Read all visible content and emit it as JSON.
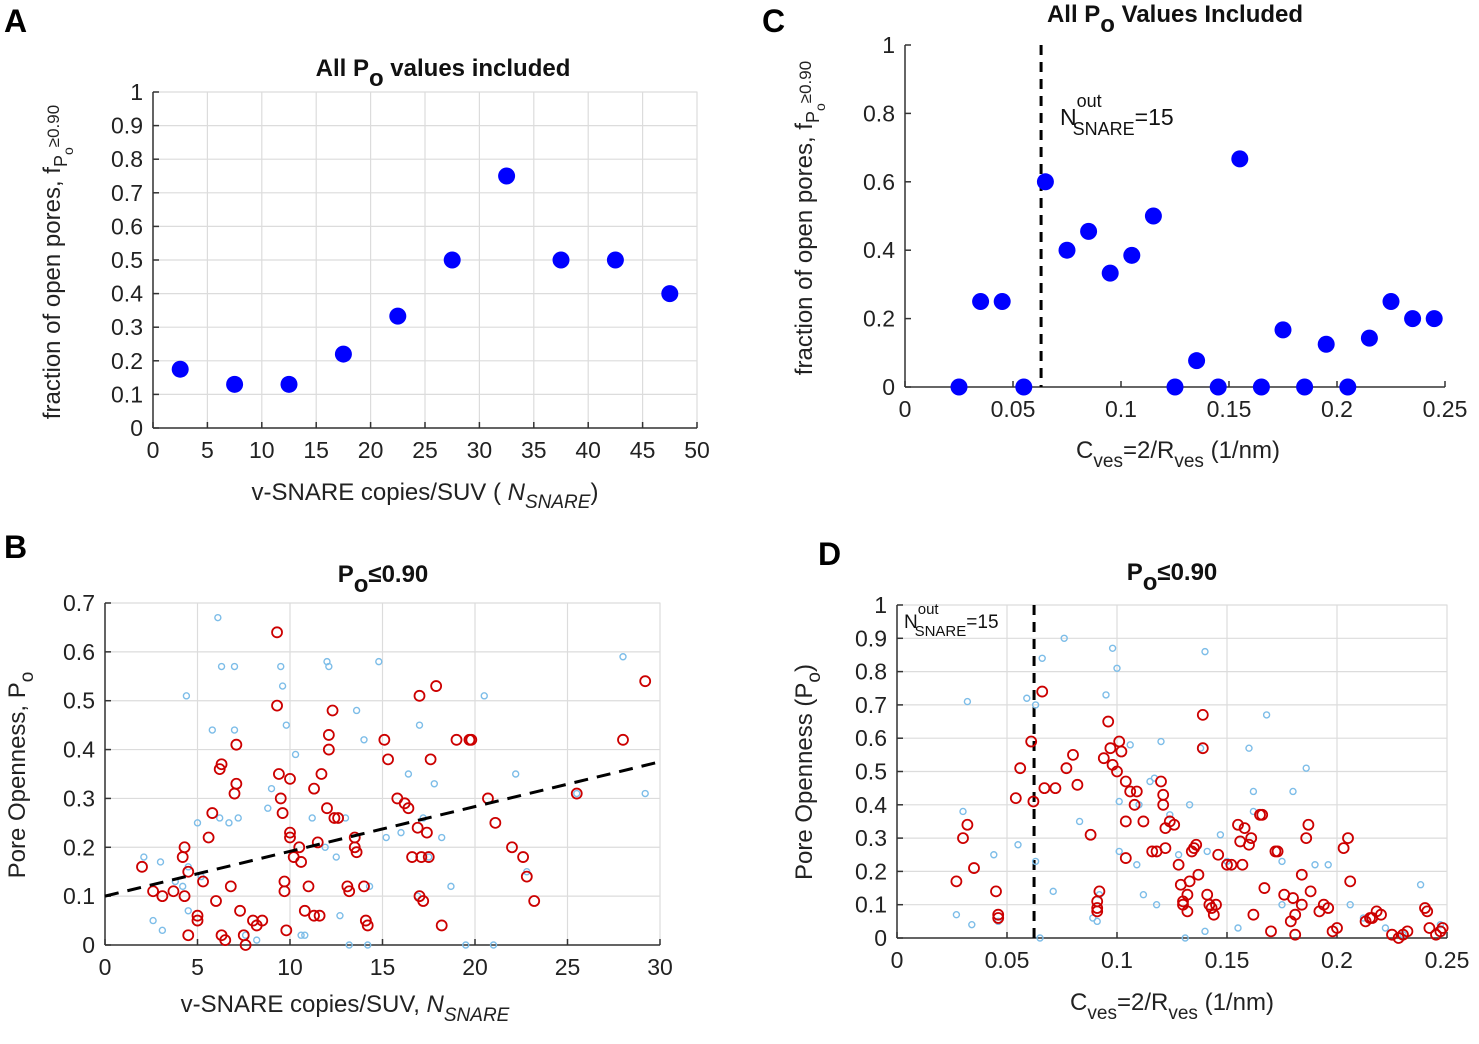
{
  "chart_data": [
    {
      "panel": "A",
      "type": "scatter",
      "title": {
        "pre": "All P",
        "sub": "o",
        "post": " values included"
      },
      "xlabel": {
        "pre": "v-SNARE copies/SUV ( ",
        "ital": "N",
        "sub": "SNARE",
        "post": ")"
      },
      "ylabel": {
        "pre": "fraction of open pores, f",
        "sub": "P",
        "subsub": "o",
        "post": "≥0.90"
      },
      "xlim": [
        0,
        50
      ],
      "ylim": [
        0,
        1
      ],
      "xticks": [
        0,
        5,
        10,
        15,
        20,
        25,
        30,
        35,
        40,
        45,
        50
      ],
      "xticklabels": [
        "0",
        "5",
        "10",
        "15",
        "20",
        "25",
        "30",
        "35",
        "40",
        "45",
        "50"
      ],
      "yticks": [
        0,
        0.1,
        0.2,
        0.3,
        0.4,
        0.5,
        0.6,
        0.7,
        0.8,
        0.9,
        1
      ],
      "yticklabels": [
        "0",
        "0.1",
        "0.2",
        "0.3",
        "0.4",
        "0.5",
        "0.6",
        "0.7",
        "0.8",
        "0.9",
        "1"
      ],
      "grid": true,
      "series": [
        {
          "color": "#0000ff",
          "marker": "filled-circle",
          "x": [
            2.5,
            7.5,
            12.5,
            17.5,
            22.5,
            27.5,
            32.5,
            37.5,
            42.5,
            47.5
          ],
          "y": [
            0.175,
            0.13,
            0.13,
            0.22,
            0.333,
            0.5,
            0.75,
            0.5,
            0.5,
            0.4
          ]
        }
      ]
    },
    {
      "panel": "B",
      "type": "scatter",
      "title": {
        "pre": "P",
        "sub": "o",
        "post": "≤0.90"
      },
      "xlabel": {
        "pre": "v-SNARE copies/SUV,  ",
        "ital": "N",
        "sub": "SNARE",
        "post": ""
      },
      "ylabel": {
        "pre": "Pore Openness, P",
        "sub": "o",
        "post": ""
      },
      "xlim": [
        0,
        30
      ],
      "ylim": [
        0,
        0.7
      ],
      "xticks": [
        0,
        5,
        10,
        15,
        20,
        25,
        30
      ],
      "xticklabels": [
        "0",
        "5",
        "10",
        "15",
        "20",
        "25",
        "30"
      ],
      "yticks": [
        0,
        0.1,
        0.2,
        0.3,
        0.4,
        0.5,
        0.6,
        0.7
      ],
      "yticklabels": [
        "0",
        "0.1",
        "0.2",
        "0.3",
        "0.4",
        "0.5",
        "0.6",
        "0.7"
      ],
      "grid": true,
      "trendline": {
        "x": [
          0,
          30
        ],
        "y": [
          0.1,
          0.375
        ],
        "style": "dashed",
        "color": "#000000"
      },
      "series": [
        {
          "color": "#7dbde8",
          "marker": "small-open-circle",
          "x": [
            2.1,
            2.6,
            3.1,
            3.8,
            4.4,
            4.5,
            4.2,
            4.5,
            5.2,
            5.8,
            6.1,
            6.3,
            6.2,
            6.7,
            7.0,
            7.0,
            7.2,
            7.6,
            8.2,
            8.8,
            9.5,
            9.6,
            9.8,
            10.3,
            10.6,
            10.8,
            12.0,
            12.1,
            12.5,
            13.2,
            13.0,
            13.6,
            14.2,
            14.8,
            15.2,
            16.0,
            16.4,
            17.0,
            17.8,
            17.2,
            17.5,
            18.2,
            18.7,
            19.5,
            20.5,
            21.0,
            22.2,
            22.8,
            25.5,
            28.0,
            29.2,
            11.2,
            12.7,
            14.3,
            16.9,
            5.0,
            9.0,
            11.9,
            14.0,
            3.0
          ],
          "y": [
            0.18,
            0.05,
            0.03,
            0.13,
            0.51,
            0.16,
            0.12,
            0.07,
            0.14,
            0.44,
            0.67,
            0.57,
            0.26,
            0.25,
            0.44,
            0.57,
            0.26,
            0.02,
            0.01,
            0.28,
            0.57,
            0.53,
            0.45,
            0.39,
            0.02,
            0.02,
            0.58,
            0.57,
            0.18,
            0.0,
            0.26,
            0.48,
            0.0,
            0.58,
            0.22,
            0.23,
            0.35,
            0.45,
            0.33,
            0.26,
            0.18,
            0.22,
            0.12,
            0.0,
            0.51,
            0.0,
            0.35,
            0.15,
            0.31,
            0.59,
            0.31,
            0.26,
            0.06,
            0.12,
            0.1,
            0.25,
            0.32,
            0.2,
            0.42,
            0.17
          ]
        },
        {
          "color": "#cc0000",
          "marker": "open-circle",
          "x": [
            2.0,
            2.6,
            3.1,
            3.7,
            4.2,
            4.3,
            4.5,
            4.3,
            4.5,
            5.0,
            5.0,
            5.3,
            5.6,
            5.8,
            6.0,
            6.2,
            6.3,
            6.3,
            6.5,
            6.8,
            7.0,
            7.1,
            7.1,
            7.3,
            7.5,
            7.6,
            8.0,
            8.2,
            8.5,
            9.3,
            9.3,
            9.4,
            9.5,
            9.6,
            9.7,
            9.7,
            9.8,
            10.0,
            10.0,
            10.0,
            10.2,
            10.5,
            10.6,
            10.8,
            11.0,
            11.3,
            11.6,
            11.5,
            11.3,
            11.7,
            12.0,
            12.1,
            12.1,
            12.3,
            12.4,
            12.6,
            13.1,
            13.2,
            13.5,
            13.5,
            13.6,
            14.1,
            14.2,
            14.0,
            15.1,
            15.3,
            15.8,
            16.2,
            16.4,
            16.6,
            16.9,
            17.0,
            17.2,
            17.1,
            17.4,
            17.5,
            17.6,
            17.0,
            17.9,
            18.2,
            19.0,
            19.7,
            19.8,
            20.7,
            21.1,
            22.0,
            22.6,
            22.8,
            23.2,
            25.5,
            28.0,
            29.2
          ],
          "y": [
            0.16,
            0.11,
            0.1,
            0.11,
            0.18,
            0.2,
            0.15,
            0.1,
            0.02,
            0.06,
            0.05,
            0.13,
            0.22,
            0.27,
            0.09,
            0.36,
            0.37,
            0.02,
            0.01,
            0.12,
            0.31,
            0.33,
            0.41,
            0.07,
            0.02,
            0.0,
            0.05,
            0.04,
            0.05,
            0.64,
            0.49,
            0.35,
            0.3,
            0.27,
            0.13,
            0.11,
            0.03,
            0.34,
            0.23,
            0.22,
            0.18,
            0.2,
            0.17,
            0.07,
            0.12,
            0.06,
            0.06,
            0.21,
            0.32,
            0.35,
            0.28,
            0.4,
            0.43,
            0.48,
            0.26,
            0.26,
            0.12,
            0.11,
            0.22,
            0.2,
            0.19,
            0.05,
            0.04,
            0.12,
            0.42,
            0.38,
            0.3,
            0.29,
            0.28,
            0.18,
            0.24,
            0.1,
            0.09,
            0.18,
            0.23,
            0.18,
            0.38,
            0.51,
            0.53,
            0.04,
            0.42,
            0.42,
            0.42,
            0.3,
            0.25,
            0.2,
            0.18,
            0.14,
            0.09,
            0.31,
            0.42,
            0.54
          ]
        }
      ]
    },
    {
      "panel": "C",
      "type": "scatter",
      "title": {
        "pre": "All P",
        "sub": "o",
        "post": " Values Included"
      },
      "xlabel": {
        "pre": "C",
        "sub": "ves",
        "mid": "=2/R",
        "sub2": "ves",
        "post": " (1/nm)"
      },
      "ylabel": {
        "pre": "fraction of open pores, f",
        "sub": "P",
        "subsub": "o",
        "post": "≥0.90"
      },
      "xlim": [
        0,
        0.25
      ],
      "ylim": [
        0,
        1
      ],
      "xticks": [
        0,
        0.05,
        0.1,
        0.15,
        0.2,
        0.25
      ],
      "xticklabels": [
        "0",
        "0.05",
        "0.1",
        "0.15",
        "0.2",
        "0.25"
      ],
      "yticks": [
        0,
        0.2,
        0.4,
        0.6,
        0.8,
        1
      ],
      "yticklabels": [
        "0",
        "0.2",
        "0.4",
        "0.6",
        "0.8",
        "1"
      ],
      "grid": false,
      "vline": {
        "x": 0.063,
        "style": "dashed",
        "color": "#000000"
      },
      "annotation": {
        "pre": "N",
        "sup": "out",
        "sub": "SNARE",
        "post": "=15"
      },
      "series": [
        {
          "color": "#0000ff",
          "marker": "filled-circle",
          "x": [
            0.025,
            0.035,
            0.045,
            0.055,
            0.065,
            0.075,
            0.085,
            0.095,
            0.105,
            0.115,
            0.125,
            0.135,
            0.145,
            0.155,
            0.165,
            0.175,
            0.185,
            0.195,
            0.205,
            0.215,
            0.225,
            0.235,
            0.245
          ],
          "y": [
            0,
            0.25,
            0.25,
            0,
            0.6,
            0.4,
            0.455,
            0.333,
            0.385,
            0.5,
            0,
            0.077,
            0,
            0.667,
            0,
            0.167,
            0,
            0.125,
            0,
            0.143,
            0.25,
            0.2,
            0.2
          ]
        }
      ]
    },
    {
      "panel": "D",
      "type": "scatter",
      "title": {
        "pre": "P",
        "sub": "o",
        "post": "≤0.90"
      },
      "xlabel": {
        "pre": "C",
        "sub": "ves",
        "mid": "=2/R",
        "sub2": "ves",
        "post": " (1/nm)"
      },
      "ylabel": {
        "pre": "Pore Openness (P",
        "sub": "o",
        "post": ")"
      },
      "xlim": [
        0,
        0.25
      ],
      "ylim": [
        0,
        1
      ],
      "xticks": [
        0,
        0.05,
        0.1,
        0.15,
        0.2,
        0.25
      ],
      "xticklabels": [
        "0",
        "0.05",
        "0.1",
        "0.15",
        "0.2",
        "0.25"
      ],
      "yticks": [
        0,
        0.1,
        0.2,
        0.3,
        0.4,
        0.5,
        0.6,
        0.7,
        0.8,
        0.9,
        1
      ],
      "yticklabels": [
        "0",
        "0.1",
        "0.2",
        "0.3",
        "0.4",
        "0.5",
        "0.6",
        "0.7",
        "0.8",
        "0.9",
        "1"
      ],
      "grid": true,
      "vline": {
        "x": 0.0623,
        "style": "dashed",
        "color": "#000000"
      },
      "annotation": {
        "pre": "N",
        "sup": "out",
        "sub": "SNARE",
        "post": "=15"
      },
      "series": [
        {
          "color": "#7dbde8",
          "marker": "small-open-circle",
          "x": [
            0.027,
            0.03,
            0.032,
            0.034,
            0.044,
            0.046,
            0.055,
            0.059,
            0.063,
            0.063,
            0.065,
            0.066,
            0.071,
            0.076,
            0.083,
            0.089,
            0.091,
            0.092,
            0.095,
            0.098,
            0.1,
            0.101,
            0.101,
            0.106,
            0.109,
            0.11,
            0.112,
            0.115,
            0.117,
            0.12,
            0.124,
            0.128,
            0.131,
            0.133,
            0.138,
            0.14,
            0.141,
            0.147,
            0.15,
            0.155,
            0.16,
            0.162,
            0.162,
            0.168,
            0.175,
            0.175,
            0.18,
            0.186,
            0.19,
            0.196,
            0.206,
            0.212,
            0.222,
            0.238,
            0.247,
            0.23,
            0.14,
            0.118
          ],
          "y": [
            0.07,
            0.38,
            0.71,
            0.04,
            0.25,
            0.05,
            0.28,
            0.72,
            0.7,
            0.23,
            0.0,
            0.84,
            0.14,
            0.9,
            0.35,
            0.06,
            0.05,
            0.13,
            0.73,
            0.87,
            0.81,
            0.41,
            0.26,
            0.58,
            0.22,
            0.4,
            0.13,
            0.47,
            0.48,
            0.59,
            0.37,
            0.25,
            0.0,
            0.4,
            0.57,
            0.86,
            0.26,
            0.31,
            0.23,
            0.03,
            0.57,
            0.44,
            0.38,
            0.67,
            0.23,
            0.1,
            0.44,
            0.51,
            0.22,
            0.22,
            0.1,
            0.06,
            0.03,
            0.16,
            0.04,
            0.01,
            0.02,
            0.1
          ]
        },
        {
          "color": "#cc0000",
          "marker": "open-circle",
          "x": [
            0.027,
            0.03,
            0.032,
            0.035,
            0.045,
            0.046,
            0.046,
            0.054,
            0.056,
            0.061,
            0.062,
            0.066,
            0.067,
            0.072,
            0.077,
            0.08,
            0.082,
            0.088,
            0.091,
            0.091,
            0.091,
            0.092,
            0.094,
            0.096,
            0.097,
            0.098,
            0.1,
            0.101,
            0.102,
            0.104,
            0.104,
            0.104,
            0.106,
            0.108,
            0.109,
            0.112,
            0.116,
            0.118,
            0.12,
            0.121,
            0.121,
            0.122,
            0.122,
            0.124,
            0.126,
            0.128,
            0.129,
            0.13,
            0.13,
            0.132,
            0.132,
            0.133,
            0.134,
            0.135,
            0.136,
            0.137,
            0.139,
            0.139,
            0.141,
            0.142,
            0.143,
            0.144,
            0.145,
            0.146,
            0.15,
            0.152,
            0.155,
            0.156,
            0.157,
            0.158,
            0.16,
            0.161,
            0.162,
            0.165,
            0.166,
            0.167,
            0.17,
            0.172,
            0.173,
            0.176,
            0.179,
            0.18,
            0.181,
            0.181,
            0.184,
            0.184,
            0.186,
            0.187,
            0.188,
            0.192,
            0.194,
            0.196,
            0.198,
            0.2,
            0.203,
            0.205,
            0.206,
            0.213,
            0.215,
            0.216,
            0.218,
            0.22,
            0.225,
            0.228,
            0.23,
            0.232,
            0.24,
            0.241,
            0.242,
            0.245,
            0.247,
            0.248
          ],
          "y": [
            0.17,
            0.3,
            0.34,
            0.21,
            0.14,
            0.06,
            0.07,
            0.42,
            0.51,
            0.59,
            0.41,
            0.74,
            0.45,
            0.45,
            0.51,
            0.55,
            0.46,
            0.31,
            0.09,
            0.08,
            0.11,
            0.14,
            0.54,
            0.65,
            0.57,
            0.52,
            0.5,
            0.59,
            0.56,
            0.47,
            0.35,
            0.24,
            0.44,
            0.4,
            0.44,
            0.35,
            0.26,
            0.26,
            0.47,
            0.43,
            0.4,
            0.27,
            0.33,
            0.35,
            0.34,
            0.22,
            0.16,
            0.11,
            0.1,
            0.13,
            0.08,
            0.17,
            0.26,
            0.27,
            0.28,
            0.19,
            0.57,
            0.67,
            0.13,
            0.1,
            0.09,
            0.07,
            0.1,
            0.25,
            0.22,
            0.22,
            0.34,
            0.29,
            0.22,
            0.33,
            0.28,
            0.3,
            0.07,
            0.37,
            0.37,
            0.15,
            0.02,
            0.26,
            0.26,
            0.13,
            0.05,
            0.12,
            0.07,
            0.01,
            0.19,
            0.1,
            0.3,
            0.34,
            0.14,
            0.08,
            0.1,
            0.09,
            0.02,
            0.03,
            0.27,
            0.3,
            0.17,
            0.05,
            0.06,
            0.06,
            0.08,
            0.07,
            0.01,
            0.0,
            0.01,
            0.02,
            0.09,
            0.08,
            0.03,
            0.01,
            0.02,
            0.03
          ]
        }
      ]
    }
  ]
}
